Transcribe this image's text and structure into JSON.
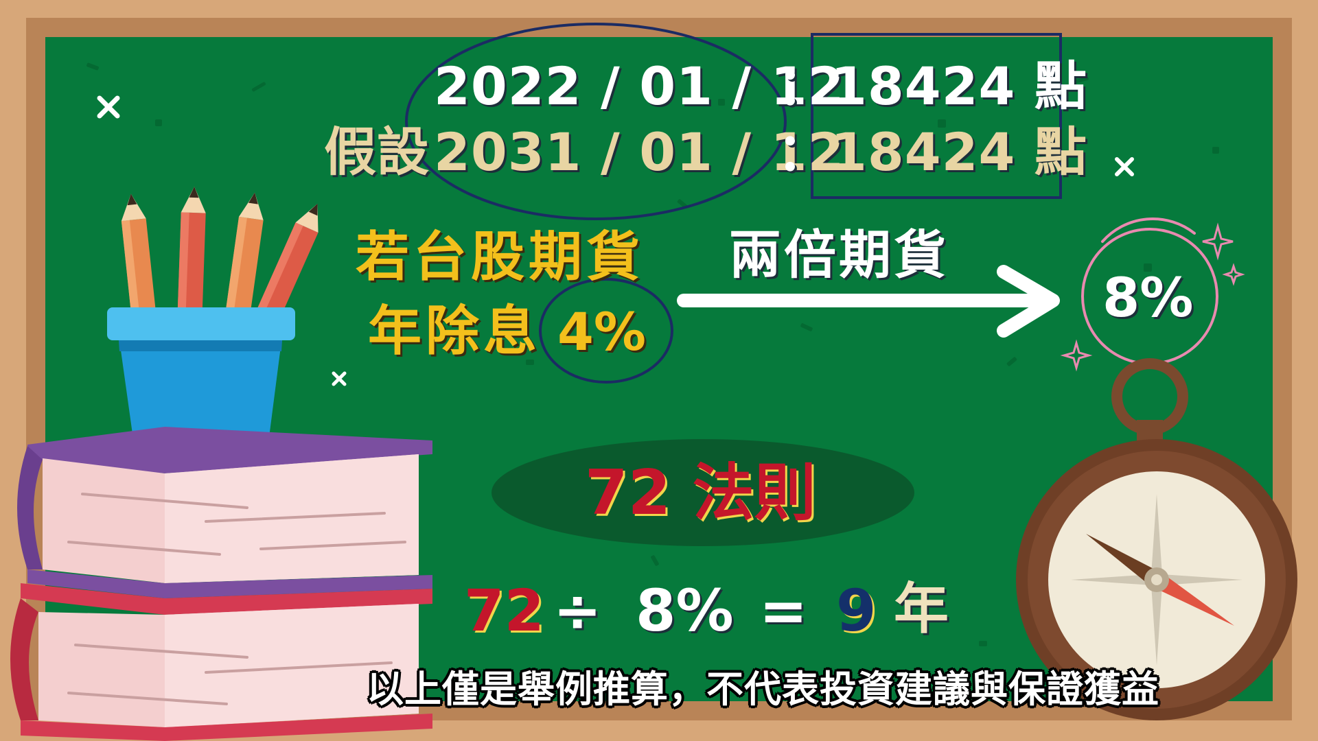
{
  "lines": {
    "row1_date": "2022 / 01 / 12",
    "row1_colon": "：",
    "row1_points": "18424 點",
    "row2_prefix": "假設",
    "row2_date": "2031 / 01 / 12",
    "row2_colon": "：",
    "row2_points": "18424 點"
  },
  "assumption": {
    "line1": "若台股期貨",
    "line2": "年除息",
    "rate": "4%"
  },
  "leverage": {
    "label": "兩倍期貨",
    "result": "8%"
  },
  "rule": {
    "title": "72 法則",
    "eq_72": "72",
    "eq_div": "÷",
    "eq_rate": "8%",
    "eq_equals": "=",
    "eq_years_num": "9",
    "eq_years_unit": "年"
  },
  "caption": "以上僅是舉例推算，不代表投資建議與保證獲益",
  "icons": [
    "x-mark-icon",
    "sparkle-icon",
    "pencil-cup-illustration",
    "books-illustration",
    "compass-illustration",
    "arrow-right-icon"
  ],
  "colors": {
    "board": "#067a3c",
    "frame": "#d7a779",
    "gold": "#f3c01c",
    "red": "#c4162b",
    "navy": "#14306a",
    "ellipse_outline": "#1b2b63",
    "pink_circle": "#e98ab0"
  }
}
